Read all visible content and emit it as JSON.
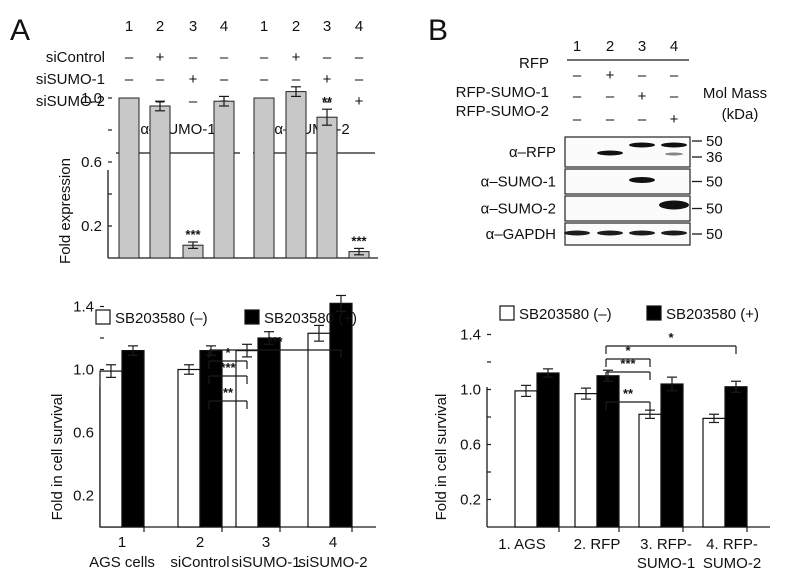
{
  "panel_a": {
    "letter": "A",
    "lanes": [
      "1",
      "2",
      "3",
      "4"
    ],
    "row_labels": [
      "siControl",
      "siSUMO-1",
      "siSUMO-2"
    ],
    "signs": [
      [
        "–",
        "+",
        "–",
        "–"
      ],
      [
        "–",
        "–",
        "+",
        "–"
      ],
      [
        "–",
        "–",
        "–",
        "+"
      ]
    ],
    "blot_groups": [
      "α–SUMO-1",
      "α–SUMO-2"
    ]
  },
  "panel_b": {
    "letter": "B",
    "lanes": [
      "1",
      "2",
      "3",
      "4"
    ],
    "row_labels": [
      "RFP",
      "RFP-SUMO-1",
      "RFP-SUMO-2"
    ],
    "signs": [
      [
        "–",
        "+",
        "–",
        "–"
      ],
      [
        "–",
        "–",
        "+",
        "–"
      ],
      [
        "–",
        "–",
        "–",
        "+"
      ]
    ],
    "mol_mass_label": [
      "Mol Mass",
      "(kDa)"
    ],
    "blots": [
      {
        "label": "α–RFP",
        "markers": [
          "50",
          "36"
        ]
      },
      {
        "label": "α–SUMO-1",
        "markers": [
          "50"
        ]
      },
      {
        "label": "α–SUMO-2",
        "markers": [
          "50"
        ]
      },
      {
        "label": "α–GAPDH",
        "markers": [
          "50"
        ]
      }
    ]
  },
  "colors": {
    "gray_bar": "#c8c8c8",
    "black_bar": "#000000",
    "white_bar": "#ffffff",
    "axis": "#1a1a1a",
    "blot_band": "#111111"
  },
  "chart_data": [
    {
      "type": "bar",
      "panel": "A (top)",
      "ylabel": "Fold expression",
      "yticks": [
        "1.0",
        "0.6",
        "0.2"
      ],
      "ylim": [
        0,
        1.2
      ],
      "groups": [
        {
          "name": "α–SUMO-1",
          "values": [
            1.0,
            0.95,
            0.08,
            0.98
          ],
          "errors": [
            0,
            0.03,
            0.02,
            0.03
          ],
          "annotations": [
            "",
            "",
            "***",
            ""
          ]
        },
        {
          "name": "α–SUMO-2",
          "values": [
            1.0,
            1.04,
            0.88,
            0.04
          ],
          "errors": [
            0,
            0.03,
            0.05,
            0.02
          ],
          "annotations": [
            "",
            "",
            "**",
            "***"
          ]
        }
      ]
    },
    {
      "type": "bar",
      "panel": "A (bottom)",
      "ylabel": "Fold in cell survival",
      "yticks": [
        "1.4",
        "1.0",
        "0.6",
        "0.2"
      ],
      "ylim": [
        0,
        1.6
      ],
      "categories": [
        [
          "1",
          "AGS cells"
        ],
        [
          "2",
          "siControl"
        ],
        [
          "3",
          "siSUMO-1"
        ],
        [
          "4",
          "siSUMO-2"
        ]
      ],
      "series": [
        {
          "name": "SB203580 (–)",
          "values": [
            0.99,
            1.0,
            1.12,
            1.23
          ],
          "errors": [
            0.04,
            0.03,
            0.04,
            0.05
          ]
        },
        {
          "name": "SB203580 (+)",
          "values": [
            1.12,
            1.12,
            1.2,
            1.42
          ],
          "errors": [
            0.03,
            0.03,
            0.04,
            0.05
          ]
        }
      ],
      "significance": [
        {
          "from": 1,
          "to": 3,
          "label": "***"
        },
        {
          "from": 1,
          "to": 2,
          "label": "*"
        },
        {
          "from": 1,
          "to": 2,
          "label": "***"
        },
        {
          "from": 1,
          "to": 2,
          "label": "**"
        }
      ]
    },
    {
      "type": "bar",
      "panel": "B (bottom)",
      "ylabel": "Fold  in cell survival",
      "yticks": [
        "1.4",
        "1.0",
        "0.6",
        "0.2"
      ],
      "ylim": [
        0,
        1.6
      ],
      "categories": [
        [
          "1. AGS"
        ],
        [
          "2. RFP"
        ],
        [
          "3. RFP-",
          "SUMO-1"
        ],
        [
          "4. RFP-",
          "SUMO-2"
        ]
      ],
      "series": [
        {
          "name": "SB203580 (–)",
          "values": [
            0.99,
            0.97,
            0.82,
            0.79
          ],
          "errors": [
            0.04,
            0.04,
            0.03,
            0.03
          ],
          "seriesLabel": "SB203580 (–)"
        },
        {
          "name": "SB203580 (+)",
          "values": [
            1.12,
            1.1,
            1.04,
            1.02
          ],
          "errors": [
            0.03,
            0.04,
            0.05,
            0.04
          ]
        }
      ],
      "significance": [
        {
          "from": 1,
          "to": 3,
          "label": "*"
        },
        {
          "from": 1,
          "to": 2,
          "label": "*"
        },
        {
          "from": 1,
          "to": 2,
          "label": "***"
        },
        {
          "from": 1,
          "to": 2,
          "label": "**"
        }
      ]
    }
  ]
}
